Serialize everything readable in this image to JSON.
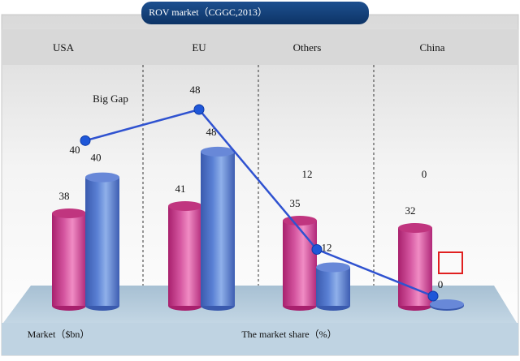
{
  "chart_data": {
    "type": "bar",
    "title": "ROV market（CGGC,2013）",
    "categories": [
      "USA",
      "EU",
      "Others",
      "China"
    ],
    "series": [
      {
        "name": "Market（$bn）",
        "values": [
          38,
          41,
          35,
          32
        ]
      },
      {
        "name": "The market share（%）",
        "values": [
          40,
          48,
          12,
          0
        ]
      }
    ],
    "line": {
      "values": [
        40,
        48,
        12,
        0
      ]
    },
    "top_labels": [
      "40",
      "48",
      "12",
      "0"
    ],
    "annotations": [
      {
        "text": "Big Gap",
        "category": "USA"
      }
    ],
    "ylim": [
      0,
      48
    ],
    "legend": "bottom",
    "grid": false,
    "colors": {
      "market": "#c8348a",
      "share": "#4a72c8",
      "line": "#2f52d0",
      "highlight": "#e02020"
    }
  }
}
